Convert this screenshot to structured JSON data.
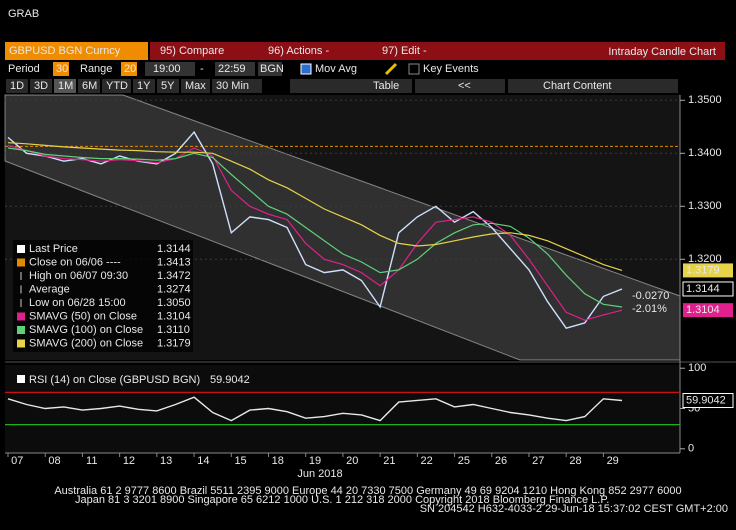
{
  "app": {
    "title": "GRAB"
  },
  "toolbar": {
    "security": "GBPUSD BGN Curncy",
    "compare": "95) Compare",
    "actions": "96) Actions -",
    "edit": "97) Edit -",
    "chart_name": "Intraday Candle Chart"
  },
  "settings": {
    "period_label": "Period",
    "period": "30",
    "range_label": "Range",
    "range": "20",
    "start": "19:00",
    "separator": "-",
    "end": "22:59",
    "source": "BGN",
    "mov_avg": "Mov Avg",
    "key_events": "Key Events"
  },
  "buttons": {
    "ranges": [
      "1D",
      "3D",
      "1M",
      "6M",
      "YTD",
      "1Y",
      "5Y",
      "Max",
      "30 Min"
    ],
    "table": "Table",
    "back": "<<",
    "chart_content": "Chart Content"
  },
  "footer": [
    "Australia 61 2 9777 8600 Brazil 5511 2395 9000 Europe 44 20 7330 7500 Germany 49 69 9204 1210 Hong Kong 852 2977 6000",
    "Japan 81 3 3201 8900      Singapore 65 6212 1000      U.S. 1 212 318 2000      Copyright 2018 Bloomberg Finance L.P.",
    "SN 204542 H632-4033-2 29-Jun-18 15:37:02 CEST GMT+2:00"
  ],
  "chart_data": [
    {
      "type": "line",
      "ylim": [
        1.301,
        1.351
      ],
      "yticks": [
        {
          "value": 1.35,
          "label": "1.3500"
        },
        {
          "value": 1.34,
          "label": "1.3400"
        },
        {
          "value": 1.33,
          "label": "1.3300"
        },
        {
          "value": 1.32,
          "label": "1.3200"
        }
      ],
      "grid": true,
      "reference_lines": [
        {
          "value": 1.3413,
          "color": "#e08a00"
        }
      ],
      "series": [
        {
          "name": "Last Price",
          "color": "#cfe0ff",
          "legend_value": "1.3144",
          "values": [
            1.343,
            1.34,
            1.3395,
            1.3385,
            1.339,
            1.338,
            1.3395,
            1.3385,
            1.338,
            1.34,
            1.344,
            1.338,
            1.325,
            1.328,
            1.3275,
            1.326,
            1.319,
            1.3175,
            1.318,
            1.316,
            1.311,
            1.325,
            1.328,
            1.33,
            1.327,
            1.329,
            1.326,
            1.322,
            1.318,
            1.312,
            1.307,
            1.308,
            1.313,
            1.3144
          ]
        },
        {
          "name": "SMAVG (50) on Close",
          "color": "#e0208c",
          "legend_value": "1.3104",
          "values": [
            1.3415,
            1.3405,
            1.3395,
            1.339,
            1.3388,
            1.3385,
            1.3388,
            1.3386,
            1.3382,
            1.339,
            1.341,
            1.3395,
            1.333,
            1.33,
            1.3285,
            1.3275,
            1.323,
            1.32,
            1.319,
            1.3175,
            1.315,
            1.318,
            1.323,
            1.327,
            1.3275,
            1.328,
            1.327,
            1.3245,
            1.32,
            1.315,
            1.31,
            1.3085,
            1.3095,
            1.3104
          ]
        },
        {
          "name": "SMAVG (100) on Close",
          "color": "#5fd07a",
          "legend_value": "1.3110",
          "values": [
            1.341,
            1.3405,
            1.3398,
            1.3395,
            1.3392,
            1.339,
            1.339,
            1.3389,
            1.3387,
            1.339,
            1.34,
            1.3392,
            1.336,
            1.333,
            1.33,
            1.3285,
            1.326,
            1.3235,
            1.321,
            1.3195,
            1.3175,
            1.318,
            1.32,
            1.323,
            1.325,
            1.3265,
            1.3268,
            1.3262,
            1.324,
            1.321,
            1.317,
            1.3135,
            1.3115,
            1.311
          ]
        },
        {
          "name": "SMAVG (200) on Close",
          "color": "#e6d34a",
          "legend_value": "1.3179",
          "values": [
            1.342,
            1.3418,
            1.3415,
            1.3412,
            1.341,
            1.3408,
            1.3406,
            1.3405,
            1.3403,
            1.3402,
            1.3402,
            1.34,
            1.3385,
            1.337,
            1.335,
            1.3335,
            1.3315,
            1.3295,
            1.328,
            1.3265,
            1.3245,
            1.323,
            1.3225,
            1.3228,
            1.3235,
            1.3242,
            1.3248,
            1.325,
            1.3245,
            1.3235,
            1.322,
            1.3205,
            1.319,
            1.3179
          ]
        }
      ],
      "info_rows": [
        {
          "label": "Close on 06/06 ----",
          "value": "1.3413",
          "color": "#e08a00"
        },
        {
          "label": "High on 06/07 09:30",
          "value": "1.3472"
        },
        {
          "label": "Average",
          "value": "1.3274"
        },
        {
          "label": "Low on 06/28 15:00",
          "value": "1.3050"
        }
      ],
      "annotations": [
        "-0.0270",
        "-2.01%"
      ]
    },
    {
      "type": "line",
      "ylim": [
        -4,
        104
      ],
      "yticks": [
        100,
        50,
        0
      ],
      "xlabel": "Jun 2018",
      "categories": [
        "07",
        null,
        "08",
        null,
        "11",
        null,
        "12",
        null,
        "13",
        null,
        "14",
        null,
        "15",
        null,
        "18",
        null,
        "19",
        null,
        "20",
        null,
        "21",
        null,
        "22",
        null,
        "25",
        null,
        "26",
        null,
        "27",
        null,
        "28",
        null,
        "29",
        null
      ],
      "reference_lines": [
        {
          "value": 70,
          "color": "#d01010"
        },
        {
          "value": 30,
          "color": "#20b020"
        }
      ],
      "series": [
        {
          "name": "RSI (14) on Close (GBPUSD BGN)",
          "color": "#e8e8e8",
          "legend_value": "59.9042",
          "values": [
            62,
            55,
            50,
            52,
            48,
            50,
            53,
            49,
            47,
            55,
            64,
            45,
            35,
            48,
            50,
            46,
            38,
            40,
            44,
            42,
            35,
            58,
            60,
            62,
            52,
            55,
            50,
            45,
            42,
            38,
            35,
            40,
            62,
            59.9042
          ]
        }
      ]
    }
  ]
}
